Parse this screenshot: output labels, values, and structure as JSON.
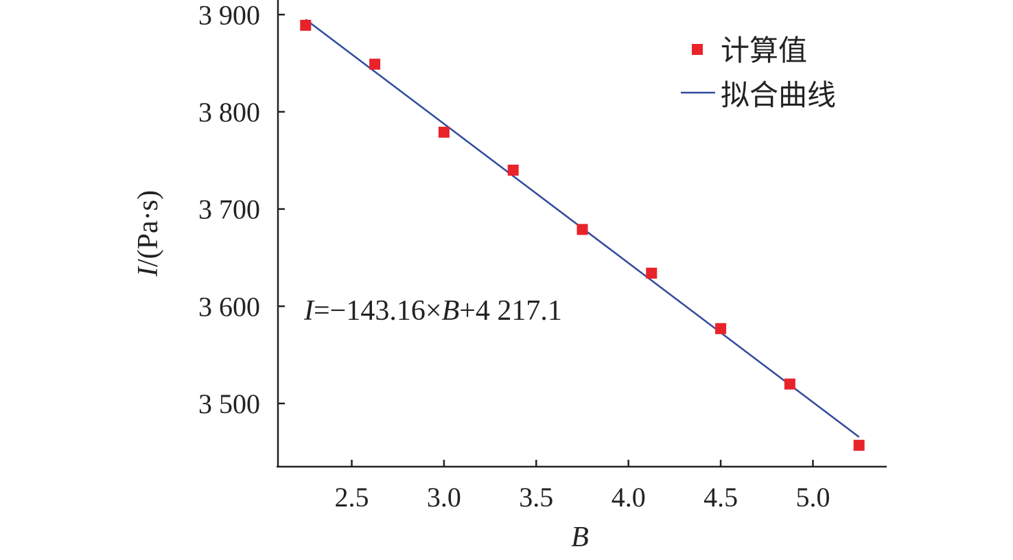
{
  "chart_data": {
    "type": "scatter",
    "xlabel": "B",
    "ylabel_italic": "I",
    "ylabel_rest": "/(Pa·s)",
    "xlim": [
      2.1,
      5.4
    ],
    "ylim": [
      3435,
      3915
    ],
    "x_ticks": [
      2.5,
      3.0,
      3.5,
      4.0,
      4.5,
      5.0
    ],
    "x_tick_labels": [
      "2.5",
      "3.0",
      "3.5",
      "4.0",
      "4.5",
      "5.0"
    ],
    "y_ticks": [
      3500,
      3600,
      3700,
      3800,
      3900
    ],
    "y_tick_labels": [
      "3 500",
      "3 600",
      "3 700",
      "3 800",
      "3 900"
    ],
    "series": [
      {
        "name": "计算值",
        "kind": "scatter",
        "color": "#e8232a",
        "x": [
          2.25,
          2.625,
          3.0,
          3.375,
          3.75,
          4.125,
          4.5,
          4.875,
          5.25
        ],
        "y": [
          3889,
          3849,
          3779,
          3740,
          3679,
          3634,
          3577,
          3520,
          3457
        ]
      },
      {
        "name": "拟合曲线",
        "kind": "line",
        "color": "#2e4a9e",
        "x": [
          2.25,
          5.25
        ],
        "slope": -143.16,
        "intercept": 4217.1
      }
    ],
    "legend_position": "top-right",
    "annotation": {
      "v1": "I",
      "t1": "=−143.16×",
      "v2": "B",
      "t2": "+4 217.1"
    },
    "grid": false
  }
}
